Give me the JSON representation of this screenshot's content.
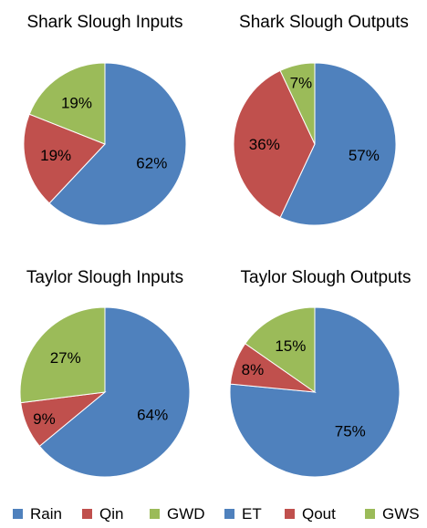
{
  "chart_data": [
    {
      "type": "pie",
      "title": "Shark Slough Inputs",
      "slices": [
        {
          "name": "Rain",
          "value": 62,
          "label": "62%"
        },
        {
          "name": "Qin",
          "value": 19,
          "label": "19%"
        },
        {
          "name": "GWD",
          "value": 19,
          "label": "19%"
        }
      ]
    },
    {
      "type": "pie",
      "title": "Shark Slough Outputs",
      "slices": [
        {
          "name": "ET",
          "value": 57,
          "label": "57%"
        },
        {
          "name": "Qout",
          "value": 36,
          "label": "36%"
        },
        {
          "name": "GWS",
          "value": 7,
          "label": "7%"
        }
      ]
    },
    {
      "type": "pie",
      "title": "Taylor Slough Inputs",
      "slices": [
        {
          "name": "Rain",
          "value": 64,
          "label": "64%"
        },
        {
          "name": "Qin",
          "value": 9,
          "label": "9%"
        },
        {
          "name": "GWD",
          "value": 27,
          "label": "27%"
        }
      ]
    },
    {
      "type": "pie",
      "title": "Taylor Slough Outputs",
      "slices": [
        {
          "name": "ET",
          "value": 75,
          "label": "75%"
        },
        {
          "name": "Qout",
          "value": 8,
          "label": "8%"
        },
        {
          "name": "GWS",
          "value": 15,
          "label": "15%"
        }
      ]
    }
  ],
  "legends": [
    {
      "items": [
        {
          "name": "Rain",
          "color": "#4f81bd"
        },
        {
          "name": "Qin",
          "color": "#c0504d"
        },
        {
          "name": "GWD",
          "color": "#9bbb59"
        }
      ]
    },
    {
      "items": [
        {
          "name": "ET",
          "color": "#4f81bd"
        },
        {
          "name": "Qout",
          "color": "#c0504d"
        },
        {
          "name": "GWS",
          "color": "#9bbb59"
        }
      ]
    }
  ],
  "colors": {
    "blue": "#4f81bd",
    "red": "#c0504d",
    "green": "#9bbb59"
  },
  "legend_placement": "bottom"
}
